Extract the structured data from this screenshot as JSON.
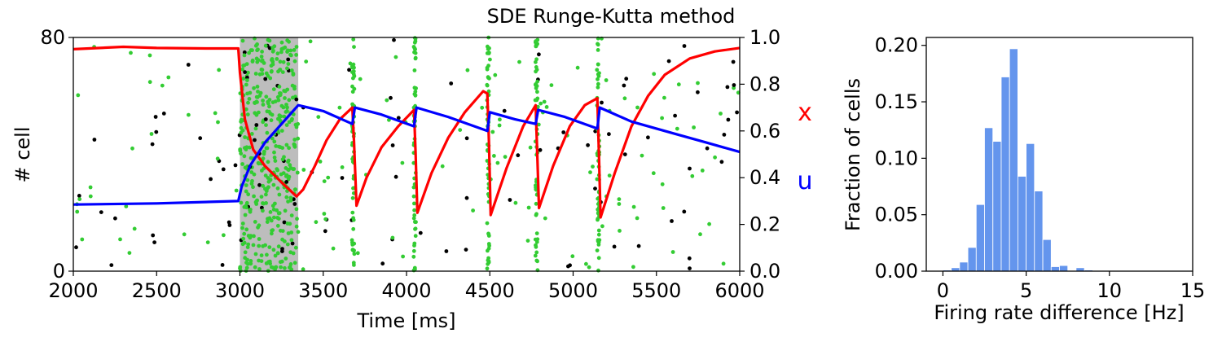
{
  "chart_data": [
    {
      "type": "raster+line",
      "title": "SDE Runge-Kutta method",
      "xlabel": "Time [ms]",
      "ylabel_left": "# cell",
      "xlim": [
        2000,
        6000
      ],
      "ylim_left": [
        0,
        80
      ],
      "ylim_right": [
        0.0,
        1.0
      ],
      "x_ticks": [
        "2000",
        "2500",
        "3000",
        "3500",
        "4000",
        "4500",
        "5000",
        "5500",
        "6000"
      ],
      "y_ticks_left": [
        "0",
        "80"
      ],
      "y_ticks_right": [
        "0.0",
        "0.2",
        "0.4",
        "0.6",
        "0.8",
        "1.0"
      ],
      "right_labels": [
        {
          "text": "x",
          "color": "#ff0000"
        },
        {
          "text": "u",
          "color": "#0000ff"
        }
      ],
      "stimulus_window": {
        "start": 3000,
        "end": 3350,
        "color": "#bdbdbd"
      },
      "population_bursts": [
        3680,
        4050,
        4490,
        4780,
        5150
      ],
      "colors": {
        "x": "#ff0000",
        "u": "#0000ff",
        "excitatory_spikes": "#33cc33",
        "inhibitory_spikes": "#000000"
      },
      "series": [
        {
          "key": "x",
          "color": "#ff0000",
          "points": [
            [
              2000,
              0.95
            ],
            [
              2300,
              0.96
            ],
            [
              2500,
              0.955
            ],
            [
              2800,
              0.953
            ],
            [
              2990,
              0.953
            ],
            [
              3000,
              0.85
            ],
            [
              3030,
              0.65
            ],
            [
              3080,
              0.52
            ],
            [
              3150,
              0.45
            ],
            [
              3250,
              0.38
            ],
            [
              3340,
              0.32
            ],
            [
              3380,
              0.35
            ],
            [
              3450,
              0.45
            ],
            [
              3520,
              0.56
            ],
            [
              3600,
              0.65
            ],
            [
              3675,
              0.7
            ],
            [
              3685,
              0.55
            ],
            [
              3700,
              0.28
            ],
            [
              3760,
              0.4
            ],
            [
              3850,
              0.53
            ],
            [
              3950,
              0.62
            ],
            [
              4045,
              0.69
            ],
            [
              4055,
              0.5
            ],
            [
              4065,
              0.25
            ],
            [
              4150,
              0.42
            ],
            [
              4250,
              0.57
            ],
            [
              4350,
              0.68
            ],
            [
              4460,
              0.77
            ],
            [
              4485,
              0.76
            ],
            [
              4495,
              0.55
            ],
            [
              4505,
              0.24
            ],
            [
              4600,
              0.44
            ],
            [
              4700,
              0.62
            ],
            [
              4775,
              0.71
            ],
            [
              4785,
              0.5
            ],
            [
              4795,
              0.27
            ],
            [
              4880,
              0.45
            ],
            [
              4980,
              0.62
            ],
            [
              5070,
              0.71
            ],
            [
              5145,
              0.74
            ],
            [
              5155,
              0.5
            ],
            [
              5165,
              0.23
            ],
            [
              5250,
              0.42
            ],
            [
              5350,
              0.62
            ],
            [
              5450,
              0.75
            ],
            [
              5550,
              0.84
            ],
            [
              5700,
              0.91
            ],
            [
              5850,
              0.94
            ],
            [
              6000,
              0.955
            ]
          ]
        },
        {
          "key": "u",
          "color": "#0000ff",
          "points": [
            [
              2000,
              0.285
            ],
            [
              2500,
              0.29
            ],
            [
              2990,
              0.3
            ],
            [
              3010,
              0.36
            ],
            [
              3060,
              0.45
            ],
            [
              3150,
              0.55
            ],
            [
              3250,
              0.63
            ],
            [
              3350,
              0.71
            ],
            [
              3500,
              0.685
            ],
            [
              3675,
              0.63
            ],
            [
              3690,
              0.7
            ],
            [
              3850,
              0.67
            ],
            [
              4045,
              0.62
            ],
            [
              4060,
              0.7
            ],
            [
              4250,
              0.66
            ],
            [
              4485,
              0.6
            ],
            [
              4500,
              0.68
            ],
            [
              4650,
              0.65
            ],
            [
              4775,
              0.63
            ],
            [
              4790,
              0.69
            ],
            [
              4950,
              0.66
            ],
            [
              5145,
              0.61
            ],
            [
              5160,
              0.7
            ],
            [
              5350,
              0.64
            ],
            [
              5600,
              0.59
            ],
            [
              5800,
              0.55
            ],
            [
              6000,
              0.51
            ]
          ]
        }
      ]
    },
    {
      "type": "bar",
      "xlabel": "Firing rate difference [Hz]",
      "ylabel": "Fraction of cells",
      "xlim": [
        -1,
        15
      ],
      "ylim": [
        0.0,
        0.207
      ],
      "x_ticks": [
        "0",
        "5",
        "10",
        "15"
      ],
      "y_ticks": [
        "0.00",
        "0.05",
        "0.10",
        "0.15",
        "0.20"
      ],
      "bin_width": 0.5,
      "bin_starts": [
        0.0,
        0.5,
        1.0,
        1.5,
        2.0,
        2.5,
        3.0,
        3.5,
        4.0,
        4.5,
        5.0,
        5.5,
        6.0,
        6.5,
        7.0,
        7.5,
        8.0,
        8.5
      ],
      "values": [
        0.001,
        0.003,
        0.008,
        0.021,
        0.059,
        0.127,
        0.115,
        0.172,
        0.197,
        0.084,
        0.113,
        0.071,
        0.028,
        0.004,
        0.005,
        0.0,
        0.003,
        0.001
      ],
      "bar_color": "#6495ed"
    }
  ]
}
